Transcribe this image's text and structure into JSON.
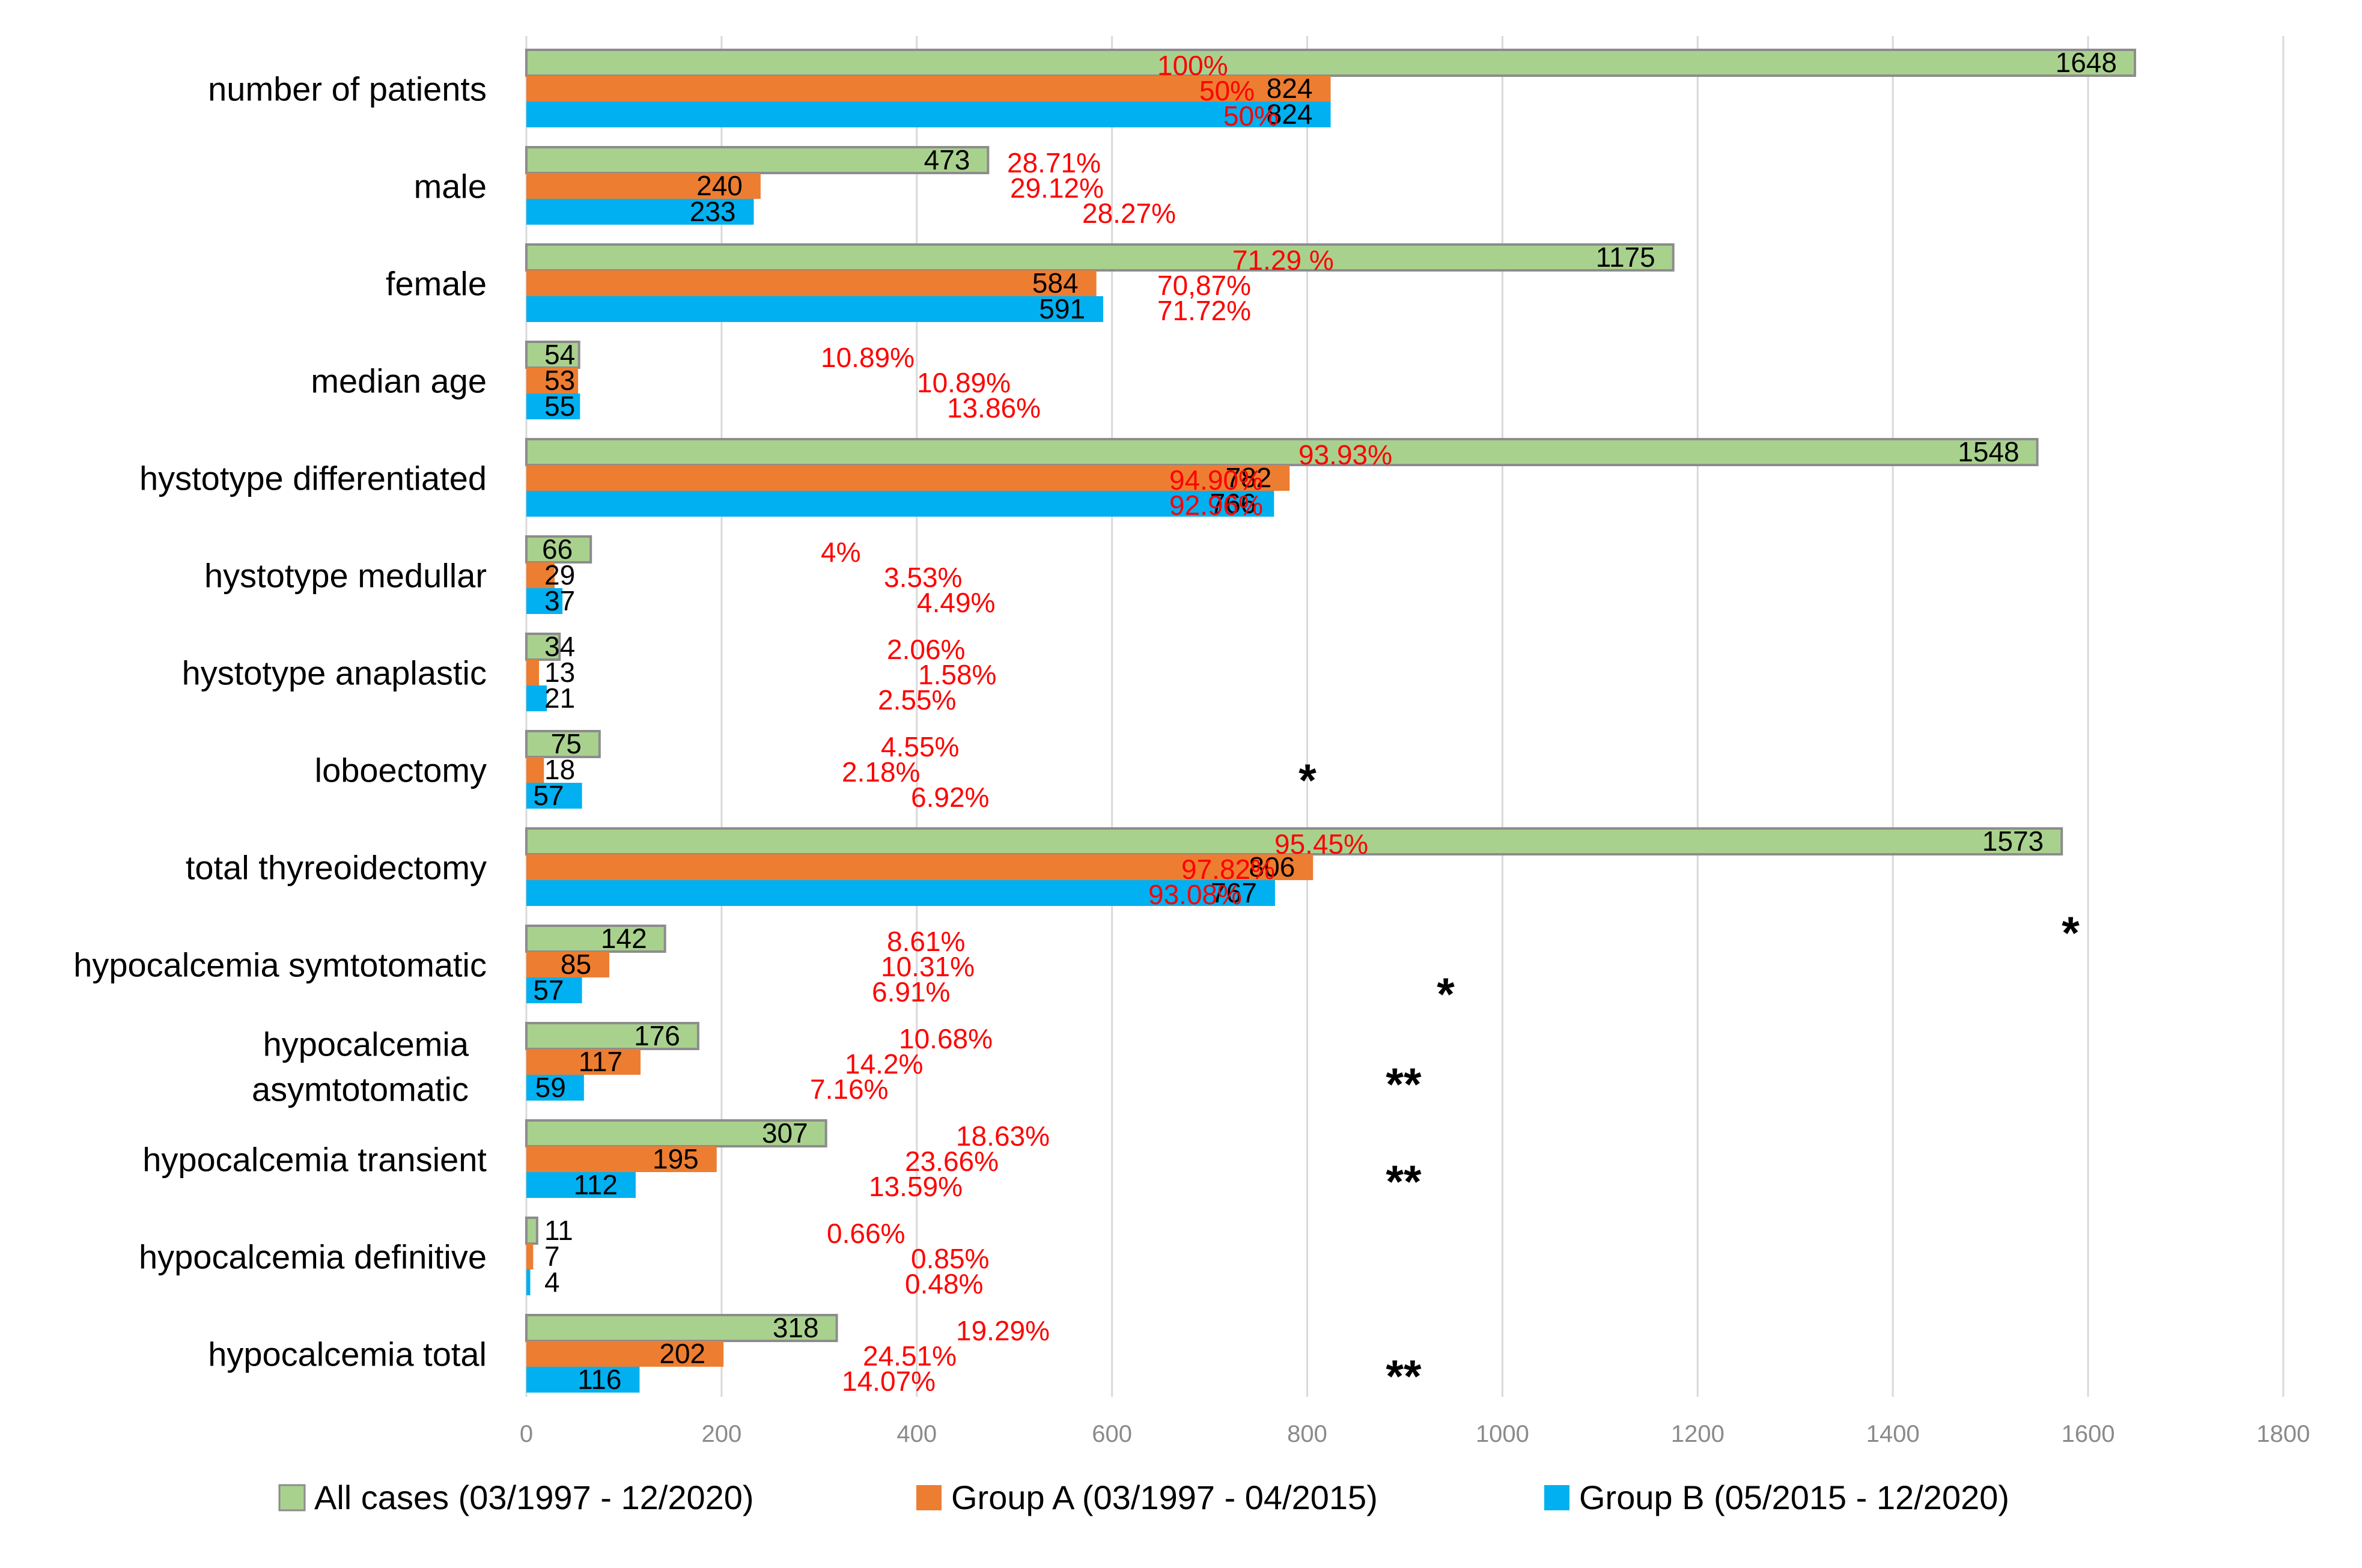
{
  "chart_data": {
    "type": "bar",
    "orientation": "horizontal",
    "xlim": [
      0,
      1800
    ],
    "x_ticks": [
      "0",
      "200",
      "400",
      "600",
      "800",
      "1000",
      "1200",
      "1400",
      "1600",
      "1800"
    ],
    "grid": true,
    "legend_position": "bottom",
    "series": [
      {
        "name": "All cases (03/1997 - 12/2020)",
        "color": "#a9d18e",
        "border": "#8c8c8c"
      },
      {
        "name": "Group A   (03/1997 - 04/2015)",
        "color": "#ed7d31",
        "border": "#ed7d31"
      },
      {
        "name": "Group B (05/2015 - 12/2020)",
        "color": "#00b0f0",
        "border": "#00b0f0"
      }
    ],
    "categories": [
      {
        "lines": [
          "number of patients"
        ],
        "values": [
          1648,
          824,
          824
        ],
        "value_labels": [
          "1648",
          "824",
          "824"
        ],
        "pct_labels": [
          "100%",
          "50%",
          "50%"
        ],
        "significance": ""
      },
      {
        "lines": [
          "male"
        ],
        "values": [
          473,
          240,
          233
        ],
        "value_labels": [
          "473",
          "240",
          "233"
        ],
        "pct_labels": [
          "28.71%",
          "29.12%",
          "28.27%"
        ],
        "significance": ""
      },
      {
        "lines": [
          "female"
        ],
        "values": [
          1175,
          584,
          591
        ],
        "value_labels": [
          "1175",
          "584",
          "591"
        ],
        "pct_labels": [
          "71.29 %",
          "70,87%",
          "71.72%"
        ],
        "significance": ""
      },
      {
        "lines": [
          "median age"
        ],
        "values": [
          54,
          53,
          55
        ],
        "value_labels": [
          "54",
          "53",
          "55"
        ],
        "pct_labels": [
          "10.89%",
          "10.89%",
          "13.86%"
        ],
        "significance": ""
      },
      {
        "lines": [
          "hystotype differentiated"
        ],
        "values": [
          1548,
          782,
          766
        ],
        "value_labels": [
          "1548",
          "782",
          "766"
        ],
        "pct_labels": [
          "93.93%",
          "94.90%",
          "92.96%"
        ],
        "significance": ""
      },
      {
        "lines": [
          "hystotype medullar"
        ],
        "values": [
          66,
          29,
          37
        ],
        "value_labels": [
          "66",
          "29",
          "37"
        ],
        "pct_labels": [
          "4%",
          "3.53%",
          "4.49%"
        ],
        "significance": ""
      },
      {
        "lines": [
          "hystotype anaplastic"
        ],
        "values": [
          34,
          13,
          21
        ],
        "value_labels": [
          "34",
          "13",
          "21"
        ],
        "pct_labels": [
          "2.06%",
          "1.58%",
          "2.55%"
        ],
        "significance": ""
      },
      {
        "lines": [
          "loboectomy"
        ],
        "values": [
          75,
          18,
          57
        ],
        "value_labels": [
          "75",
          "18",
          "57"
        ],
        "pct_labels": [
          "4.55%",
          "2.18%",
          "6.92%"
        ],
        "significance": "*"
      },
      {
        "lines": [
          "total thyreoidectomy"
        ],
        "values": [
          1573,
          806,
          767
        ],
        "value_labels": [
          "1573",
          "806",
          "767"
        ],
        "pct_labels": [
          "95.45%",
          "97.82%",
          "93.08%"
        ],
        "significance": "*"
      },
      {
        "lines": [
          "hypocalcemia symtotomatic"
        ],
        "values": [
          142,
          85,
          57
        ],
        "value_labels": [
          "142",
          "85",
          "57"
        ],
        "pct_labels": [
          "8.61%",
          "10.31%",
          "6.91%"
        ],
        "significance": "*"
      },
      {
        "lines": [
          "hypocalcemia",
          "asymtotomatic"
        ],
        "values": [
          176,
          117,
          59
        ],
        "value_labels": [
          "176",
          "117",
          "59"
        ],
        "pct_labels": [
          "10.68%",
          "14.2%",
          "7.16%"
        ],
        "significance": "**"
      },
      {
        "lines": [
          "hypocalcemia transient"
        ],
        "values": [
          307,
          195,
          112
        ],
        "value_labels": [
          "307",
          "195",
          "112"
        ],
        "pct_labels": [
          "18.63%",
          "23.66%",
          "13.59%"
        ],
        "significance": "**"
      },
      {
        "lines": [
          "hypocalcemia definitive"
        ],
        "values": [
          11,
          7,
          4
        ],
        "value_labels": [
          "11",
          "7",
          "4"
        ],
        "pct_labels": [
          "0.66%",
          "0.85%",
          "0.48%"
        ],
        "significance": ""
      },
      {
        "lines": [
          "hypocalcemia  total"
        ],
        "values": [
          318,
          202,
          116
        ],
        "value_labels": [
          "318",
          "202",
          "116"
        ],
        "pct_labels": [
          "19.29%",
          "24.51%",
          "14.07%"
        ],
        "significance": "**"
      }
    ]
  }
}
